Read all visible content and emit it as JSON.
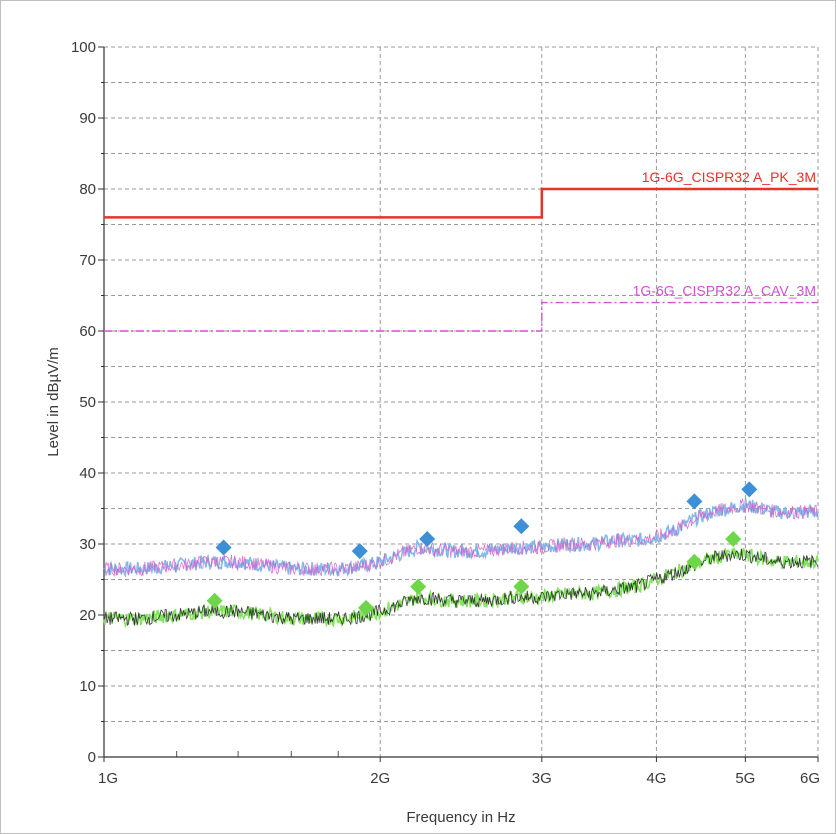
{
  "chart_data": {
    "type": "line",
    "xlabel": "Frequency in Hz",
    "ylabel": "Level in dBµV/m",
    "x_scale": "log",
    "xlim": [
      1000000000,
      6000000000
    ],
    "ylim": [
      0,
      100
    ],
    "y_ticks": [
      0,
      10,
      20,
      30,
      40,
      50,
      60,
      70,
      80,
      90,
      100
    ],
    "x_ticks": [
      {
        "value": 1000000000,
        "label": "1G"
      },
      {
        "value": 2000000000,
        "label": "2G"
      },
      {
        "value": 3000000000,
        "label": "3G"
      },
      {
        "value": 4000000000,
        "label": "4G"
      },
      {
        "value": 5000000000,
        "label": "5G"
      },
      {
        "value": 6000000000,
        "label": "6G"
      }
    ],
    "grid": true,
    "limits": [
      {
        "name": "1G-6G_CISPR32 A_PK_3M",
        "color": "#e8322a",
        "style": "solid",
        "points": [
          [
            1000000000,
            76
          ],
          [
            3000000000,
            76
          ],
          [
            3000000000,
            80
          ],
          [
            6000000000,
            80
          ]
        ]
      },
      {
        "name": "1G-6G_CISPR32 A_CAV_3M",
        "color": "#d050d0",
        "style": "dashdot",
        "points": [
          [
            1000000000,
            60
          ],
          [
            3000000000,
            60
          ],
          [
            3000000000,
            64
          ],
          [
            6000000000,
            64
          ]
        ]
      }
    ],
    "series": [
      {
        "color": "#d060c8",
        "color2": "#7fb4ea",
        "role": "peak",
        "x": [
          1000000000,
          1100000000,
          1200000000,
          1300000000,
          1400000000,
          1500000000,
          1600000000,
          1700000000,
          1800000000,
          1900000000,
          2000000000,
          2100000000,
          2200000000,
          2400000000,
          2600000000,
          2800000000,
          3000000000,
          3200000000,
          3400000000,
          3600000000,
          3800000000,
          4000000000,
          4200000000,
          4400000000,
          4600000000,
          4800000000,
          5000000000,
          5200000000,
          5400000000,
          5600000000,
          5800000000,
          6000000000
        ],
        "values": [
          26.5,
          26.5,
          27,
          27.5,
          27.5,
          27,
          26.5,
          26.5,
          26.5,
          26.8,
          27.5,
          28.5,
          29.5,
          29,
          29,
          29.5,
          29.5,
          30,
          30,
          30.5,
          30.5,
          31,
          32,
          33.5,
          34.5,
          35,
          35.5,
          35,
          34.5,
          34.5,
          34.5,
          34.5
        ]
      },
      {
        "color": "#1a1a1a",
        "color2": "#7ee05a",
        "role": "average",
        "x": [
          1000000000,
          1100000000,
          1200000000,
          1300000000,
          1400000000,
          1500000000,
          1600000000,
          1700000000,
          1800000000,
          1900000000,
          2000000000,
          2100000000,
          2200000000,
          2400000000,
          2600000000,
          2800000000,
          3000000000,
          3200000000,
          3400000000,
          3600000000,
          3800000000,
          4000000000,
          4200000000,
          4400000000,
          4600000000,
          4800000000,
          5000000000,
          5200000000,
          5400000000,
          5600000000,
          5800000000,
          6000000000
        ],
        "values": [
          19.5,
          19.5,
          20,
          20.5,
          20.5,
          20,
          19.5,
          19.5,
          19.5,
          19.8,
          20.5,
          21.5,
          22.5,
          22,
          22,
          22.5,
          22.5,
          23,
          23,
          23.5,
          24,
          25,
          26,
          27,
          28,
          28.5,
          28.5,
          28,
          27.5,
          27.5,
          27.5,
          27.5
        ]
      }
    ],
    "markers": [
      {
        "role": "peak",
        "color": "#3d8fd6",
        "points": [
          [
            1350000000,
            29.5
          ],
          [
            1900000000,
            29
          ],
          [
            2250000000,
            30.7
          ],
          [
            2850000000,
            32.5
          ],
          [
            4400000000,
            36
          ],
          [
            5050000000,
            37.7
          ]
        ]
      },
      {
        "role": "average",
        "color": "#6fd64a",
        "points": [
          [
            1320000000,
            22
          ],
          [
            1930000000,
            21
          ],
          [
            2200000000,
            24
          ],
          [
            2850000000,
            24
          ],
          [
            4400000000,
            27.5
          ],
          [
            4850000000,
            30.7
          ]
        ]
      }
    ]
  }
}
